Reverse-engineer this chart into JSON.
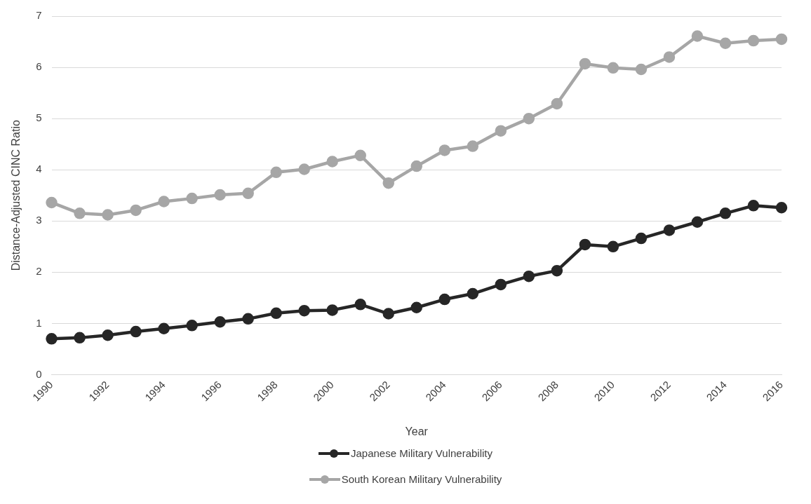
{
  "chart_data": {
    "type": "line",
    "xlabel": "Year",
    "ylabel": "Distance-Adjusted CINC Ratio",
    "categories": [
      "1990",
      null,
      "1992",
      null,
      "1994",
      null,
      "1996",
      null,
      "1998",
      null,
      "2000",
      null,
      "2002",
      null,
      "2004",
      null,
      "2006",
      null,
      "2008",
      null,
      "2010",
      null,
      "2012",
      null,
      "2014",
      null,
      "2016"
    ],
    "series": [
      {
        "name": "Japanese Military Vulnerability",
        "color": "#262626",
        "values": [
          0.7,
          0.72,
          0.77,
          0.84,
          0.9,
          0.96,
          1.03,
          1.09,
          1.2,
          1.25,
          1.26,
          1.37,
          1.19,
          1.31,
          1.47,
          1.58,
          1.76,
          1.92,
          2.03,
          2.54,
          2.5,
          2.66,
          2.82,
          2.98,
          3.15,
          3.3,
          3.26
        ]
      },
      {
        "name": "South Korean Military Vulnerability",
        "color": "#a6a6a6",
        "values": [
          3.36,
          3.15,
          3.12,
          3.21,
          3.38,
          3.44,
          3.51,
          3.54,
          3.95,
          4.01,
          4.16,
          4.28,
          3.74,
          4.07,
          4.38,
          4.46,
          4.76,
          5.0,
          5.29,
          6.07,
          5.99,
          5.96,
          6.2,
          6.61,
          6.47,
          6.52,
          6.55
        ]
      }
    ],
    "ylim": [
      0,
      7
    ],
    "yticks": [
      0,
      1,
      2,
      3,
      4,
      5,
      6,
      7
    ],
    "grid": "y",
    "legend": "bottom",
    "marker": "circle",
    "line_style": "solid"
  }
}
